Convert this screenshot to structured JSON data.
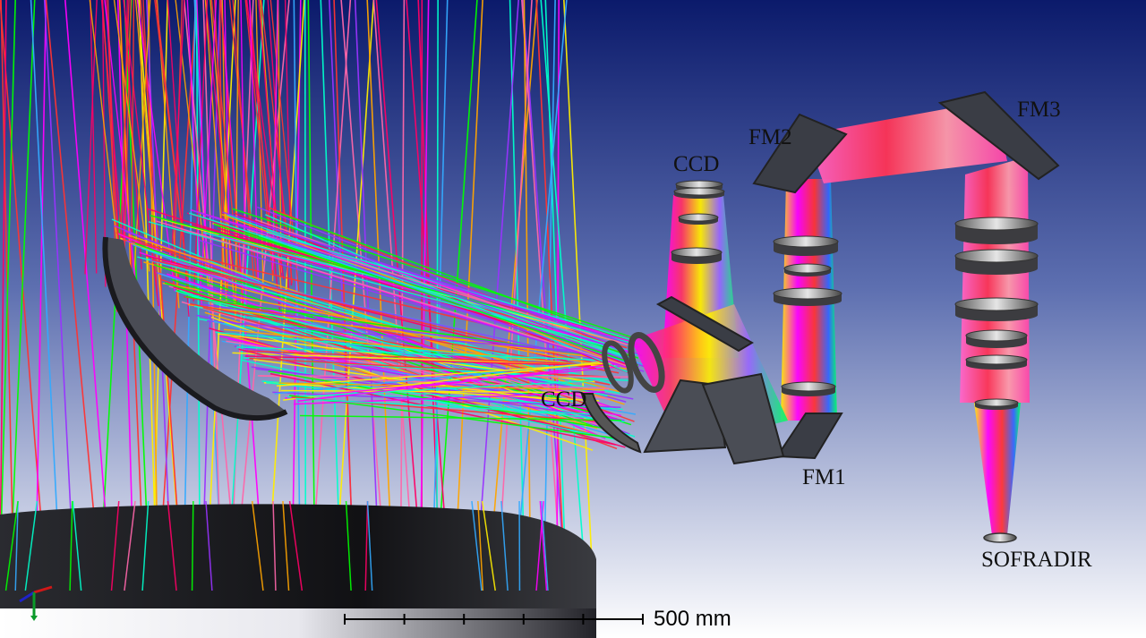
{
  "labels": {
    "fm1": "FM1",
    "fm2": "FM2",
    "fm3": "FM3",
    "ccd_top": "CCD",
    "ccd_left": "CCD",
    "sofradir": "SOFRADIR"
  },
  "scale_bar": {
    "text": "500 mm",
    "segments": 5
  },
  "colors": {
    "bg_top": "#0b1a6b",
    "bg_bottom": "#ffffff",
    "ray_colors": [
      "#ff0066",
      "#ff00ff",
      "#ff3333",
      "#ffa500",
      "#ffee00",
      "#00ff00",
      "#00ffcc",
      "#33aaff",
      "#9933ff",
      "#ff66aa"
    ],
    "optic_gray": "#3a3d45",
    "primary_mirror": "#1c1c1f"
  },
  "axis_triad": {
    "icon": "xyz-axis-triad-icon"
  }
}
